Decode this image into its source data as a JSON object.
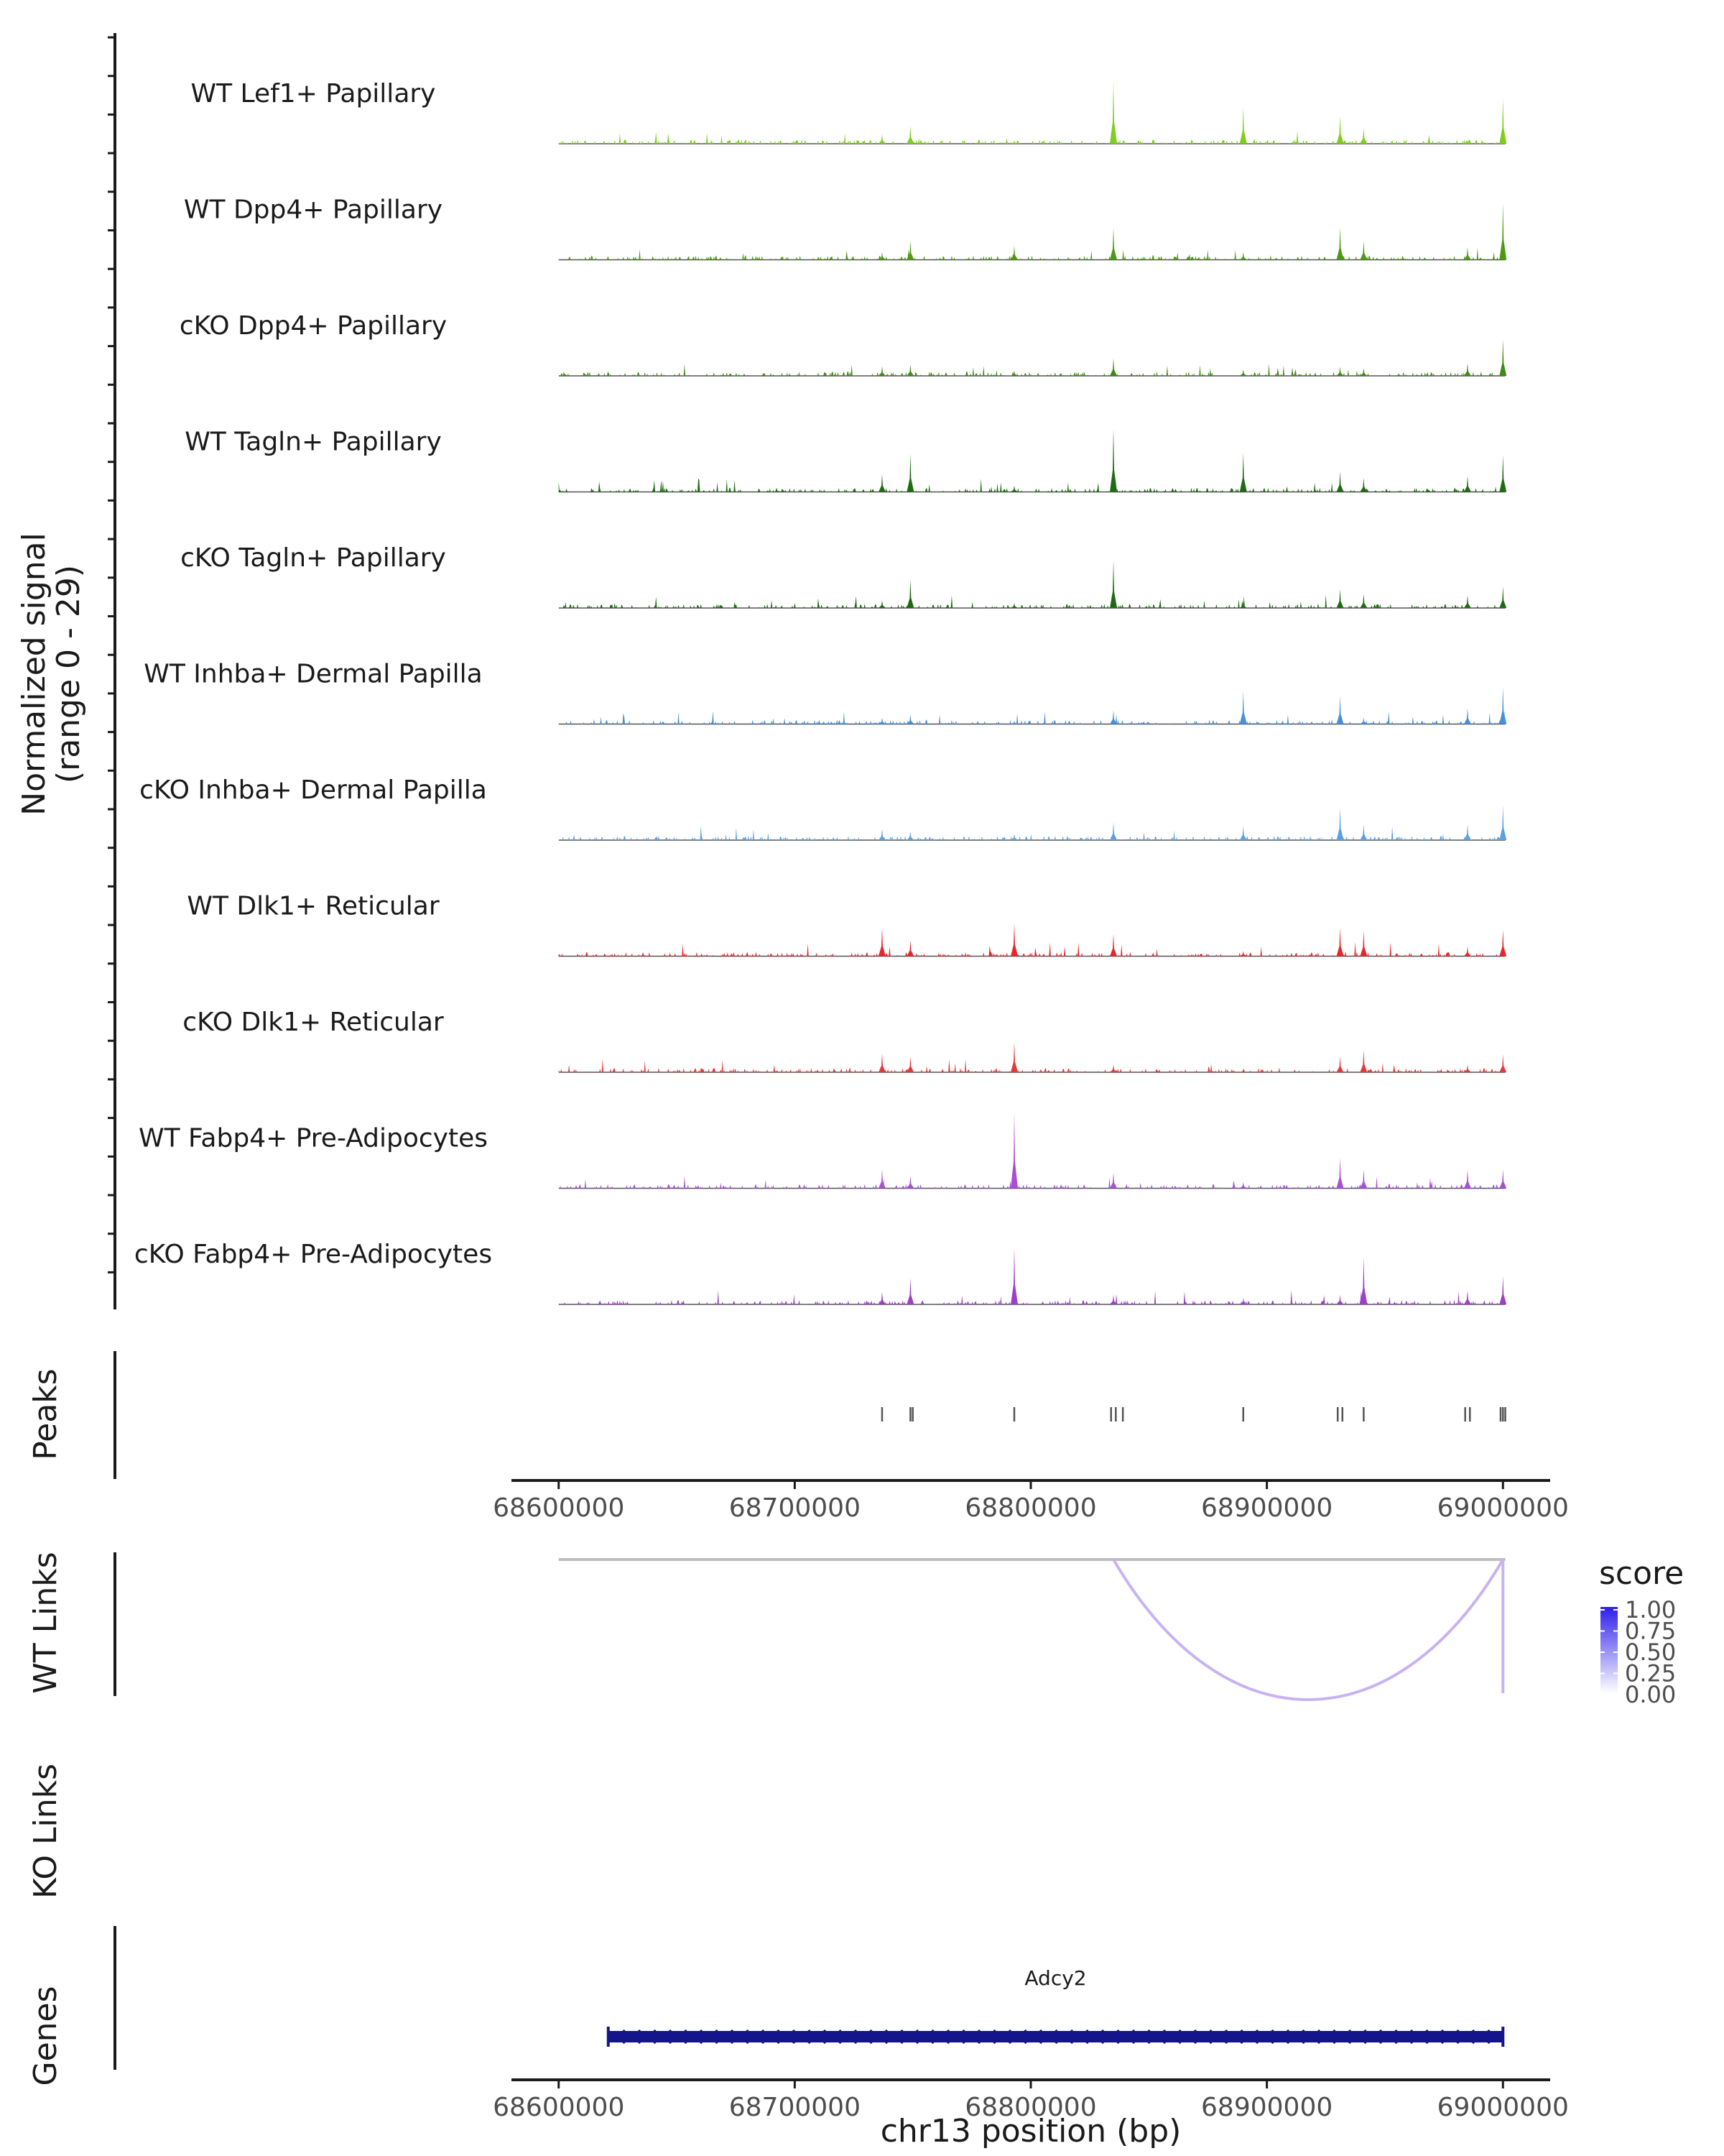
{
  "chart_data": {
    "type": "coverage",
    "chromosome": "chr13",
    "xlim": [
      68580000,
      69020000
    ],
    "ylabel_line1": "Normalized signal",
    "ylabel_line2": "(range 0 - 29)",
    "signal_range": [
      0,
      29
    ],
    "xlabel": "chr13 position (bp)",
    "x_ticks": [
      "68600000",
      "68700000",
      "68800000",
      "68900000",
      "69000000"
    ],
    "x_tick_values": [
      68600000,
      68700000,
      68800000,
      68900000,
      69000000
    ],
    "major_peaks": [
      68737000,
      68749000,
      68793000,
      68835000,
      68890000,
      68931000,
      68941000,
      68985000,
      69000000
    ],
    "tracks": [
      {
        "name": "WT Lef1+ Papillary",
        "color": "#7FCD1E",
        "peaks": [
          0.15,
          0.28,
          0.05,
          1.0,
          0.58,
          0.44,
          0.25,
          0.06,
          0.72
        ]
      },
      {
        "name": "WT Dpp4+ Papillary",
        "color": "#4C9A12",
        "peaks": [
          0.12,
          0.3,
          0.22,
          0.5,
          0.12,
          0.52,
          0.3,
          0.2,
          0.9
        ]
      },
      {
        "name": "cKO Dpp4+ Papillary",
        "color": "#3F8A14",
        "peaks": [
          0.15,
          0.18,
          0.08,
          0.28,
          0.1,
          0.14,
          0.12,
          0.2,
          0.58
        ]
      },
      {
        "name": "WT Tagln+ Papillary",
        "color": "#1F6B12",
        "peaks": [
          0.28,
          0.6,
          0.1,
          1.0,
          0.62,
          0.32,
          0.22,
          0.25,
          0.58
        ]
      },
      {
        "name": "cKO Tagln+ Papillary",
        "color": "#1E6A12",
        "peaks": [
          0.12,
          0.45,
          0.08,
          0.75,
          0.1,
          0.3,
          0.22,
          0.2,
          0.34
        ]
      },
      {
        "name": "WT Inhba+ Dermal Papilla",
        "color": "#4A90D9",
        "peaks": [
          0.1,
          0.15,
          0.05,
          0.22,
          0.52,
          0.45,
          0.1,
          0.25,
          0.58
        ]
      },
      {
        "name": "cKO Inhba+ Dermal Papilla",
        "color": "#5AA0E6",
        "peaks": [
          0.18,
          0.14,
          0.1,
          0.28,
          0.22,
          0.52,
          0.25,
          0.25,
          0.55
        ]
      },
      {
        "name": "WT Dlk1+ Reticular",
        "color": "#E8262A",
        "peaks": [
          0.45,
          0.25,
          0.52,
          0.35,
          0.08,
          0.45,
          0.4,
          0.15,
          0.42
        ]
      },
      {
        "name": "cKO Dlk1+ Reticular",
        "color": "#E23A3A",
        "peaks": [
          0.3,
          0.25,
          0.48,
          0.12,
          0.05,
          0.25,
          0.35,
          0.12,
          0.28
        ]
      },
      {
        "name": "WT Fabp4+ Pre-Adipocytes",
        "color": "#A94FD6",
        "peaks": [
          0.3,
          0.2,
          1.2,
          0.25,
          0.1,
          0.48,
          0.3,
          0.3,
          0.3
        ]
      },
      {
        "name": "cKO Fabp4+ Pre-Adipocytes",
        "color": "#9E3FCB",
        "peaks": [
          0.2,
          0.42,
          0.9,
          0.15,
          0.1,
          0.15,
          0.75,
          0.22,
          0.45
        ]
      }
    ],
    "peaks_track": {
      "label": "Peaks",
      "positions": [
        68737000,
        68749000,
        68750000,
        68793000,
        68834000,
        68836000,
        68839000,
        68890000,
        68930000,
        68932000,
        68941000,
        68984000,
        68986000,
        68999000,
        69000000,
        69001000
      ]
    },
    "wt_links": {
      "label": "WT Links",
      "links": [
        {
          "start": 68835000,
          "end": 69000000,
          "score": 0.25
        }
      ]
    },
    "ko_links": {
      "label": "KO Links",
      "links": []
    },
    "legend": {
      "title": "score",
      "ticks": [
        "1.00",
        "0.75",
        "0.50",
        "0.25",
        "0.00"
      ],
      "low_color": "#FFFFFF",
      "high_color": "#2E1FEA"
    },
    "genes": {
      "label": "Genes",
      "items": [
        {
          "name": "Adcy2",
          "start": 68621000,
          "end": 69000000,
          "strand": "-",
          "color": "#14148C"
        }
      ]
    }
  }
}
